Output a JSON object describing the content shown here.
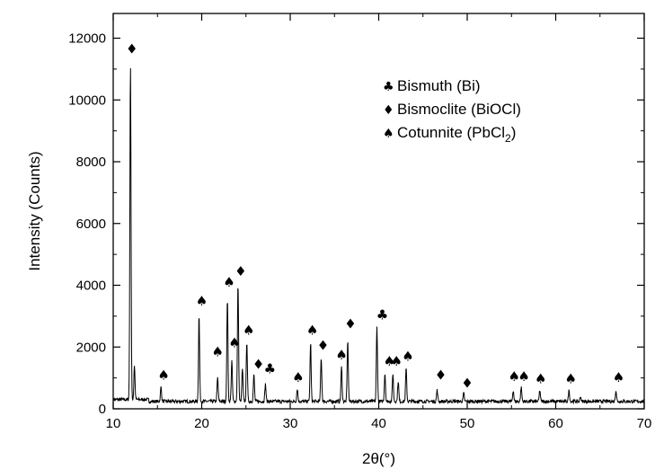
{
  "chart_data": {
    "type": "line",
    "title": "",
    "xlabel": "2θ(°)",
    "ylabel": "Intensity (Counts)",
    "xlim": [
      10,
      70
    ],
    "ylim": [
      0,
      12800
    ],
    "x_ticks": [
      10,
      20,
      30,
      40,
      50,
      60,
      70
    ],
    "y_ticks": [
      0,
      2000,
      4000,
      6000,
      8000,
      10000,
      12000
    ],
    "baseline": 240,
    "peaks": [
      {
        "x": 11.95,
        "y": 11150
      },
      {
        "x": 12.4,
        "y": 1350
      },
      {
        "x": 15.4,
        "y": 700
      },
      {
        "x": 19.7,
        "y": 3050
      },
      {
        "x": 21.8,
        "y": 1000
      },
      {
        "x": 22.9,
        "y": 3600
      },
      {
        "x": 23.4,
        "y": 1550
      },
      {
        "x": 24.1,
        "y": 4050
      },
      {
        "x": 24.6,
        "y": 1300
      },
      {
        "x": 25.1,
        "y": 2200
      },
      {
        "x": 25.9,
        "y": 1100
      },
      {
        "x": 27.2,
        "y": 800
      },
      {
        "x": 30.8,
        "y": 650
      },
      {
        "x": 32.3,
        "y": 2150
      },
      {
        "x": 33.5,
        "y": 1650
      },
      {
        "x": 35.8,
        "y": 1350
      },
      {
        "x": 36.5,
        "y": 2200
      },
      {
        "x": 39.8,
        "y": 2650
      },
      {
        "x": 40.7,
        "y": 1150
      },
      {
        "x": 41.6,
        "y": 1150
      },
      {
        "x": 42.2,
        "y": 900
      },
      {
        "x": 43.1,
        "y": 1300
      },
      {
        "x": 46.6,
        "y": 600
      },
      {
        "x": 49.6,
        "y": 500
      },
      {
        "x": 55.2,
        "y": 600
      },
      {
        "x": 56.1,
        "y": 700
      },
      {
        "x": 58.2,
        "y": 600
      },
      {
        "x": 61.5,
        "y": 600
      },
      {
        "x": 62.8,
        "y": 400
      },
      {
        "x": 66.8,
        "y": 600
      }
    ],
    "markers": [
      {
        "phase": "Bismoclite",
        "glyph": "♦",
        "x": 12.1,
        "y": 11500
      },
      {
        "phase": "Cotunnite",
        "glyph": "♠",
        "x": 15.7,
        "y": 950
      },
      {
        "phase": "Cotunnite",
        "glyph": "♠",
        "x": 20.0,
        "y": 3350
      },
      {
        "phase": "Cotunnite",
        "glyph": "♠",
        "x": 21.8,
        "y": 1700
      },
      {
        "phase": "Cotunnite",
        "glyph": "♠",
        "x": 23.1,
        "y": 3950
      },
      {
        "phase": "Cotunnite",
        "glyph": "♠",
        "x": 23.7,
        "y": 2000
      },
      {
        "phase": "Bismoclite",
        "glyph": "♦",
        "x": 24.4,
        "y": 4300
      },
      {
        "phase": "Cotunnite",
        "glyph": "♠",
        "x": 25.3,
        "y": 2400
      },
      {
        "phase": "Bismoclite",
        "glyph": "♦",
        "x": 26.4,
        "y": 1300
      },
      {
        "phase": "Bismuth",
        "glyph": "♣",
        "x": 27.7,
        "y": 1150
      },
      {
        "phase": "Cotunnite",
        "glyph": "♠",
        "x": 30.9,
        "y": 880
      },
      {
        "phase": "Cotunnite",
        "glyph": "♠",
        "x": 32.5,
        "y": 2400
      },
      {
        "phase": "Bismoclite",
        "glyph": "♦",
        "x": 33.7,
        "y": 1900
      },
      {
        "phase": "Cotunnite",
        "glyph": "♠",
        "x": 35.8,
        "y": 1600
      },
      {
        "phase": "Bismoclite",
        "glyph": "♦",
        "x": 36.8,
        "y": 2600
      },
      {
        "phase": "Bismuth",
        "glyph": "♣",
        "x": 40.4,
        "y": 2900
      },
      {
        "phase": "Cotunnite",
        "glyph": "♠",
        "x": 41.2,
        "y": 1400
      },
      {
        "phase": "Cotunnite",
        "glyph": "♠",
        "x": 42.0,
        "y": 1400
      },
      {
        "phase": "Cotunnite",
        "glyph": "♠",
        "x": 43.3,
        "y": 1550
      },
      {
        "phase": "Bismoclite",
        "glyph": "♦",
        "x": 47.0,
        "y": 950
      },
      {
        "phase": "Bismoclite",
        "glyph": "♦",
        "x": 50.0,
        "y": 680
      },
      {
        "phase": "Cotunnite",
        "glyph": "♠",
        "x": 55.3,
        "y": 900
      },
      {
        "phase": "Cotunnite",
        "glyph": "♠",
        "x": 56.4,
        "y": 900
      },
      {
        "phase": "Cotunnite",
        "glyph": "♠",
        "x": 58.3,
        "y": 830
      },
      {
        "phase": "Cotunnite",
        "glyph": "♠",
        "x": 61.7,
        "y": 830
      },
      {
        "phase": "Cotunnite",
        "glyph": "♠",
        "x": 67.1,
        "y": 880
      }
    ],
    "legend": {
      "placement": "top-right",
      "entries": [
        {
          "glyph": "♣",
          "label": "Bismuth (Bi)"
        },
        {
          "glyph": "♦",
          "label": "Bismoclite (BiOCl)"
        },
        {
          "glyph": "♠",
          "label": "Cotunnite (PbCl",
          "subscript": "2",
          "suffix": ")"
        }
      ]
    },
    "grid": false,
    "colors": {
      "line": "#000000",
      "background": "#ffffff"
    }
  }
}
